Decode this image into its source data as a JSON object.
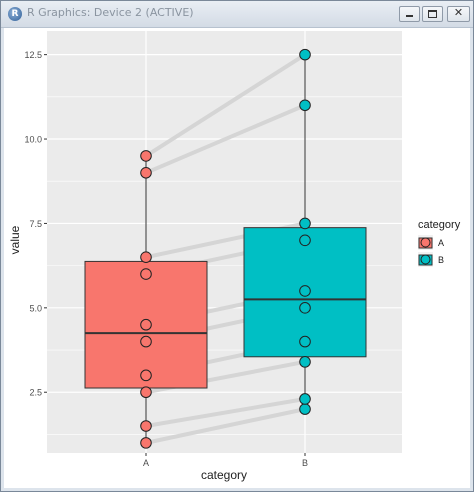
{
  "window": {
    "title": "R Graphics: Device 2 (ACTIVE)",
    "app_icon_glyph": "R",
    "close_glyph": "✕",
    "buttons": [
      "minimize",
      "maximize",
      "close"
    ]
  },
  "chart_data": {
    "type": "boxplot",
    "xlabel": "category",
    "ylabel": "value",
    "categories": [
      "A",
      "B"
    ],
    "ylim": [
      0.7,
      13.2
    ],
    "yticks": [
      2.5,
      5.0,
      7.5,
      10.0,
      12.5
    ],
    "ytick_labels": [
      "2.5",
      "5.0",
      "7.5",
      "10.0",
      "12.5"
    ],
    "grid": true,
    "legend": {
      "title": "category",
      "position": "right",
      "entries": [
        "A",
        "B"
      ]
    },
    "colors": {
      "A": "#F8766D",
      "B": "#00BFC4",
      "panel": "#EBEBEB",
      "grid": "#FFFFFF",
      "lines": "#D3D3D3"
    },
    "boxes": [
      {
        "category": "A",
        "min": 1.0,
        "q1": 2.625,
        "median": 4.25,
        "q3": 6.375,
        "max": 9.5
      },
      {
        "category": "B",
        "min": 2.0,
        "q1": 3.55,
        "median": 5.25,
        "q3": 7.375,
        "max": 12.5
      }
    ],
    "pairs": [
      {
        "A": 1.0,
        "B": 2.0
      },
      {
        "A": 1.5,
        "B": 2.3
      },
      {
        "A": 2.5,
        "B": 3.4
      },
      {
        "A": 3.0,
        "B": 4.0
      },
      {
        "A": 4.0,
        "B": 5.0
      },
      {
        "A": 4.5,
        "B": 5.5
      },
      {
        "A": 6.0,
        "B": 7.0
      },
      {
        "A": 6.5,
        "B": 7.5
      },
      {
        "A": 9.0,
        "B": 11.0
      },
      {
        "A": 9.5,
        "B": 12.5
      }
    ]
  }
}
